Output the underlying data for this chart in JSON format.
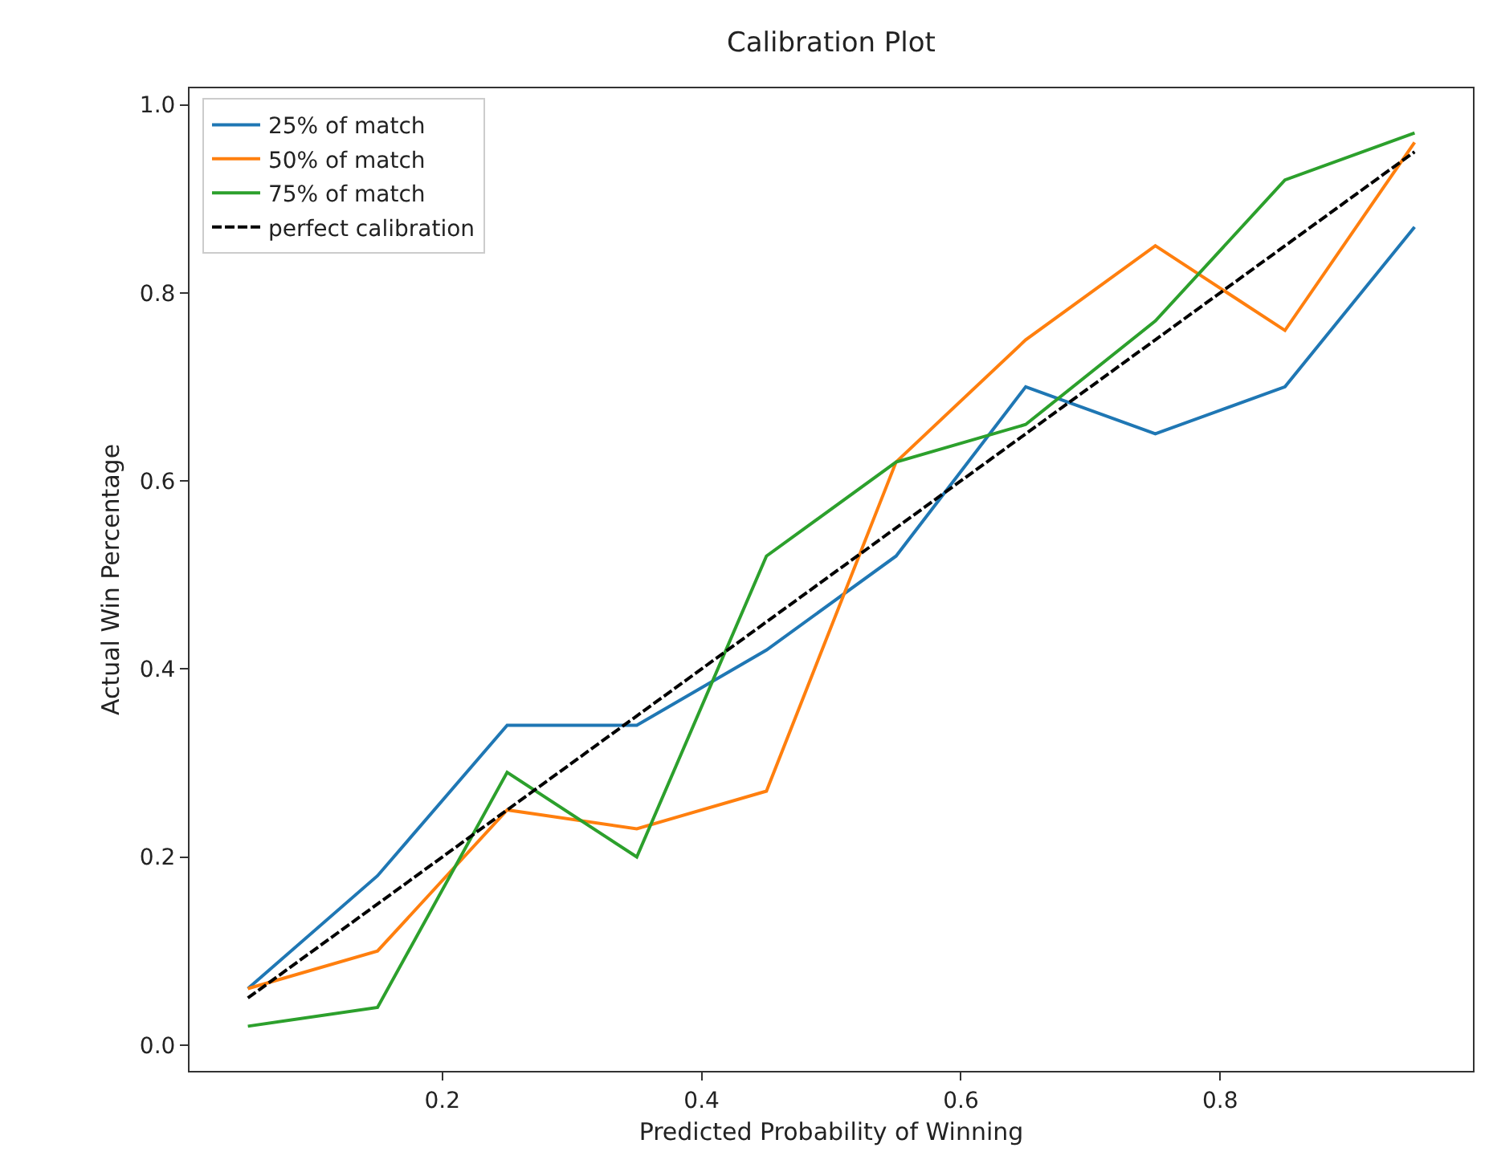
{
  "chart_data": {
    "type": "line",
    "title": "Calibration Plot",
    "xlabel": "Predicted Probability of Winning",
    "ylabel": "Actual Win Percentage",
    "x": [
      0.05,
      0.15,
      0.25,
      0.35,
      0.45,
      0.55,
      0.65,
      0.75,
      0.85,
      0.95
    ],
    "series": [
      {
        "name": "25% of match",
        "color": "#1f77b4",
        "values": [
          0.06,
          0.18,
          0.34,
          0.34,
          0.42,
          0.52,
          0.7,
          0.65,
          0.7,
          0.87
        ]
      },
      {
        "name": "50% of match",
        "color": "#ff7f0e",
        "values": [
          0.06,
          0.1,
          0.25,
          0.23,
          0.27,
          0.62,
          0.75,
          0.85,
          0.76,
          0.96
        ]
      },
      {
        "name": "75% of match",
        "color": "#2ca02c",
        "values": [
          0.02,
          0.04,
          0.29,
          0.2,
          0.52,
          0.62,
          0.66,
          0.77,
          0.92,
          0.97
        ]
      },
      {
        "name": "perfect calibration",
        "color": "#000000",
        "line_style": "dashed",
        "values": [
          0.05,
          0.15,
          0.25,
          0.35,
          0.45,
          0.55,
          0.65,
          0.75,
          0.85,
          0.95
        ]
      }
    ],
    "xlim": [
      0.005,
      0.995
    ],
    "ylim": [
      -0.0275,
      1.0175
    ],
    "xticks": [
      0.2,
      0.4,
      0.6,
      0.8
    ],
    "yticks": [
      {
        "value": 0,
        "label": "0.0"
      },
      0.2,
      0.4,
      0.6,
      0.8,
      {
        "value": 1,
        "label": "1.0"
      }
    ],
    "legend": "top left",
    "marker": "none",
    "line_style": "solid"
  }
}
